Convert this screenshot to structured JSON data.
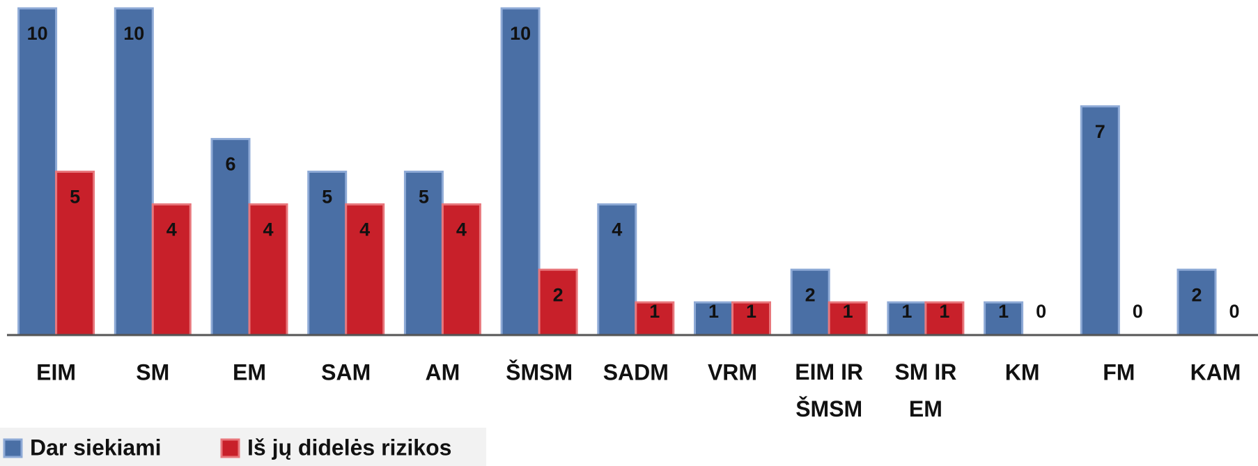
{
  "chart_data": {
    "type": "bar",
    "categories": [
      "EIM",
      "SM",
      "EM",
      "SAM",
      "AM",
      "ŠMSM",
      "SADM",
      "VRM",
      "EIM IR ŠMSM",
      "SM IR EM",
      "KM",
      "FM",
      "KAM"
    ],
    "series": [
      {
        "name": "Dar siekiami",
        "color": "#4a6fa5",
        "values": [
          10,
          10,
          6,
          5,
          5,
          10,
          4,
          1,
          2,
          1,
          1,
          7,
          2
        ]
      },
      {
        "name": "Iš jų didelės rizikos",
        "color": "#c8202a",
        "values": [
          5,
          4,
          4,
          4,
          4,
          2,
          1,
          1,
          1,
          1,
          0,
          0,
          0
        ]
      }
    ],
    "ylim": [
      0,
      10
    ]
  }
}
